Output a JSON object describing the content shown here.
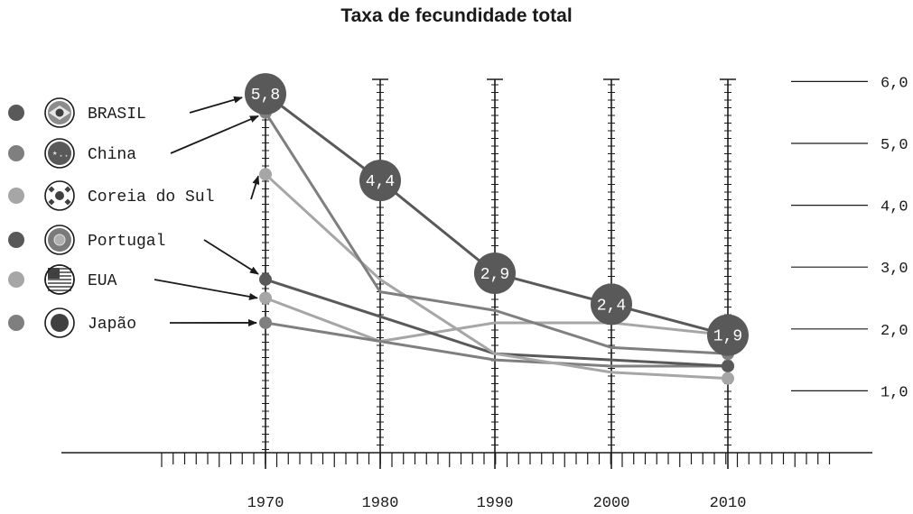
{
  "chart_data": {
    "type": "line",
    "title": "Taxa de fecundidade total",
    "xlabel": "",
    "ylabel": "",
    "x": [
      "1970",
      "1980",
      "1990",
      "2000",
      "2010"
    ],
    "y_ticks": [
      "1,0",
      "2,0",
      "3,0",
      "4,0",
      "5,0",
      "6,0"
    ],
    "ylim": [
      0,
      6.5
    ],
    "legend_position": "left",
    "series": [
      {
        "name": "BRASIL",
        "color": "#595959",
        "icon": "brazil-flag-icon",
        "values": [
          5.8,
          4.4,
          2.9,
          2.4,
          1.9
        ],
        "value_labels": [
          "5,8",
          "4,4",
          "2,9",
          "2,4",
          "1,9"
        ]
      },
      {
        "name": "China",
        "color": "#7f7f7f",
        "icon": "china-flag-icon",
        "values": [
          5.5,
          2.6,
          2.3,
          1.7,
          1.6
        ]
      },
      {
        "name": "Coreia do Sul",
        "color": "#a6a6a6",
        "icon": "south-korea-flag-icon",
        "values": [
          4.5,
          2.8,
          1.6,
          1.3,
          1.2
        ]
      },
      {
        "name": "Portugal",
        "color": "#595959",
        "icon": "portugal-flag-icon",
        "values": [
          2.8,
          2.2,
          1.6,
          1.5,
          1.4
        ]
      },
      {
        "name": "EUA",
        "color": "#a6a6a6",
        "icon": "usa-flag-icon",
        "values": [
          2.5,
          1.8,
          2.1,
          2.1,
          1.9
        ]
      },
      {
        "name": "Japão",
        "color": "#7f7f7f",
        "icon": "japan-flag-icon",
        "values": [
          2.1,
          1.8,
          1.5,
          1.4,
          1.4
        ]
      }
    ]
  }
}
